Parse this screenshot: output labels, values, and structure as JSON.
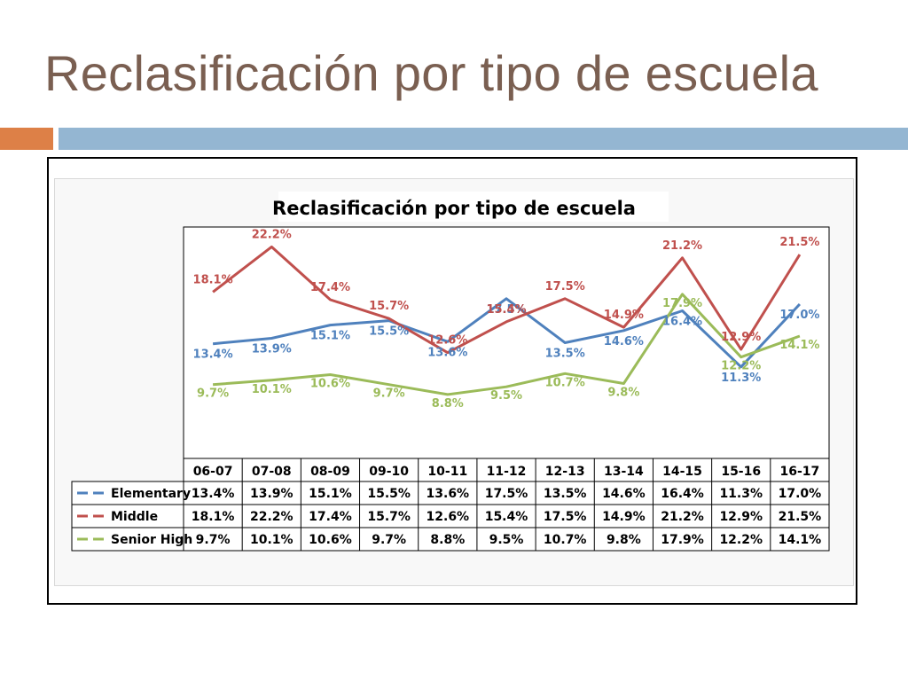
{
  "slide": {
    "title": "Reclasificación por tipo de escuela"
  },
  "colors": {
    "title": "#7a5f51",
    "accent_orange": "#dd8047",
    "accent_blue": "#94b6d2"
  },
  "chart_data": {
    "type": "line",
    "title": "Reclasificación por tipo de escuela",
    "xlabel": "",
    "ylabel": "",
    "categories": [
      "06-07",
      "07-08",
      "08-09",
      "09-10",
      "10-11",
      "11-12",
      "12-13",
      "13-14",
      "14-15",
      "15-16",
      "16-17"
    ],
    "series": [
      {
        "name": "Elementary",
        "color": "#4f81bd",
        "values": [
          13.4,
          13.9,
          15.1,
          15.5,
          13.6,
          17.5,
          13.5,
          14.6,
          16.4,
          11.3,
          17.0
        ],
        "labels": [
          "13.4%",
          "13.9%",
          "15.1%",
          "15.5%",
          "13.6%",
          "17.5%",
          "13.5%",
          "14.6%",
          "16.4%",
          "11.3%",
          "17.0%"
        ]
      },
      {
        "name": "Middle",
        "color": "#c0504d",
        "values": [
          18.1,
          22.2,
          17.4,
          15.7,
          12.6,
          15.4,
          17.5,
          14.9,
          21.2,
          12.9,
          21.5
        ],
        "labels": [
          "18.1%",
          "22.2%",
          "17.4%",
          "15.7%",
          "12.6%",
          "15.4%",
          "17.5%",
          "14.9%",
          "21.2%",
          "12.9%",
          "21.5%"
        ]
      },
      {
        "name": "Senior High",
        "color": "#9bbb59",
        "values": [
          9.7,
          10.1,
          10.6,
          9.7,
          8.8,
          9.5,
          10.7,
          9.8,
          17.9,
          12.2,
          14.1
        ],
        "labels": [
          "9.7%",
          "10.1%",
          "10.6%",
          "9.7%",
          "8.8%",
          "9.5%",
          "10.7%",
          "9.8%",
          "17.9%",
          "12.2%",
          "14.1%"
        ]
      }
    ],
    "data_table": true,
    "legend": "data-table-left",
    "grid": false
  }
}
